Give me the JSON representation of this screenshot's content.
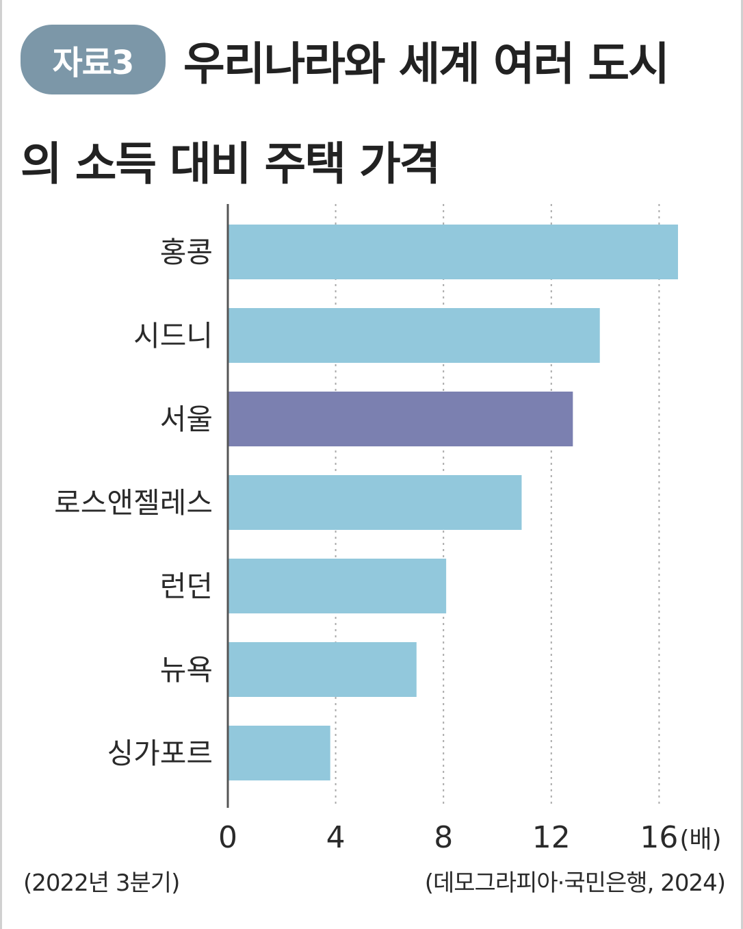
{
  "header": {
    "badge": "자료3",
    "title_line1": "우리나라와 세계 여러 도시",
    "title_line2": "의 소득 대비 주택 가격"
  },
  "chart_data": {
    "type": "bar",
    "orientation": "horizontal",
    "categories": [
      "홍콩",
      "시드니",
      "서울",
      "로스앤젤레스",
      "런던",
      "뉴욕",
      "싱가포르"
    ],
    "values": [
      16.7,
      13.8,
      12.8,
      10.9,
      8.1,
      7.0,
      3.8
    ],
    "highlight": "서울",
    "xlim": [
      0,
      16
    ],
    "xticks": [
      "0",
      "4",
      "8",
      "12",
      "16"
    ],
    "xunit": "(배)",
    "grid": "vertical dotted",
    "colors": {
      "bar": "#92c8dc",
      "highlight": "#7b80b0",
      "badge": "#7c97a8",
      "axis": "#555555",
      "grid": "#aaaaaa"
    }
  },
  "footer": {
    "note": "(2022년 3분기)",
    "source": "(데모그라피아·국민은행, 2024)"
  }
}
